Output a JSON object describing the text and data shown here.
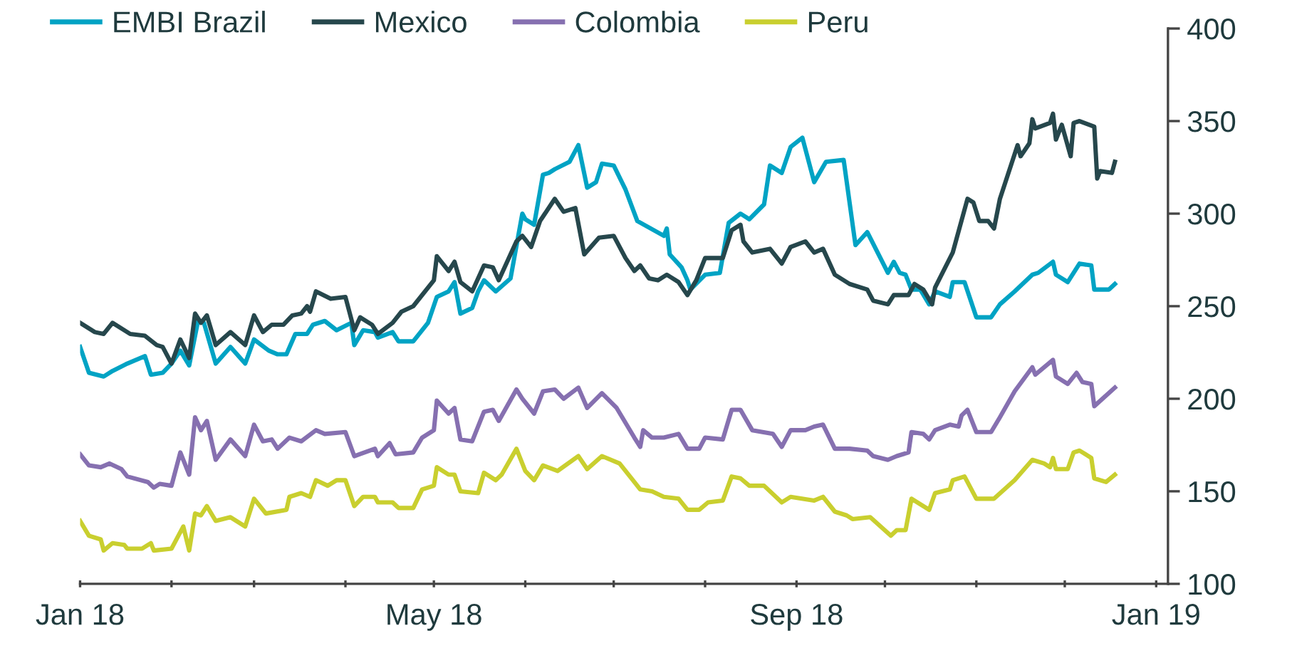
{
  "chart_data": {
    "type": "line",
    "xlim": [
      "2018-01-01",
      "2019-01-05"
    ],
    "xticks": [
      {
        "value": "2018-01-01",
        "label": "Jan 18"
      },
      {
        "value": "2018-02-01",
        "label": null
      },
      {
        "value": "2018-03-01",
        "label": null
      },
      {
        "value": "2018-04-01",
        "label": null
      },
      {
        "value": "2018-05-01",
        "label": "May 18"
      },
      {
        "value": "2018-06-01",
        "label": null
      },
      {
        "value": "2018-07-01",
        "label": null
      },
      {
        "value": "2018-08-01",
        "label": null
      },
      {
        "value": "2018-09-01",
        "label": "Sep 18"
      },
      {
        "value": "2018-10-01",
        "label": null
      },
      {
        "value": "2018-11-01",
        "label": null
      },
      {
        "value": "2018-12-01",
        "label": null
      },
      {
        "value": "2019-01-01",
        "label": "Jan 19"
      }
    ],
    "ylim": [
      100,
      400
    ],
    "yticks": [
      100,
      150,
      200,
      250,
      300,
      350,
      400
    ],
    "grid": false,
    "legend": "top left",
    "marker": "none",
    "line_style": "solid",
    "series": [
      {
        "name": "EMBI Brazil",
        "color": "#00a3c4",
        "x": [
          "2018-01-01",
          "2018-01-04",
          "2018-01-09",
          "2018-01-12",
          "2018-01-17",
          "2018-01-23",
          "2018-01-25",
          "2018-01-29",
          "2018-02-01",
          "2018-02-04",
          "2018-02-07",
          "2018-02-10",
          "2018-02-12",
          "2018-02-16",
          "2018-02-21",
          "2018-02-26",
          "2018-03-01",
          "2018-03-06",
          "2018-03-09",
          "2018-03-12",
          "2018-03-15",
          "2018-03-19",
          "2018-03-21",
          "2018-03-25",
          "2018-03-29",
          "2018-04-03",
          "2018-04-04",
          "2018-04-07",
          "2018-04-11",
          "2018-04-12",
          "2018-04-17",
          "2018-04-19",
          "2018-04-24",
          "2018-04-29",
          "2018-05-02",
          "2018-05-06",
          "2018-05-08",
          "2018-05-10",
          "2018-05-14",
          "2018-05-16",
          "2018-05-18",
          "2018-05-22",
          "2018-05-27",
          "2018-05-31",
          "2018-06-01",
          "2018-06-04",
          "2018-06-07",
          "2018-06-09",
          "2018-06-11",
          "2018-06-16",
          "2018-06-19",
          "2018-06-22",
          "2018-06-25",
          "2018-06-27",
          "2018-07-01",
          "2018-07-05",
          "2018-07-09",
          "2018-07-18",
          "2018-07-19",
          "2018-07-20",
          "2018-07-24",
          "2018-07-26",
          "2018-07-27",
          "2018-08-01",
          "2018-08-06",
          "2018-08-09",
          "2018-08-13",
          "2018-08-16",
          "2018-08-21",
          "2018-08-23",
          "2018-08-27",
          "2018-08-30",
          "2018-09-03",
          "2018-09-07",
          "2018-09-11",
          "2018-09-17",
          "2018-09-21",
          "2018-09-25",
          "2018-10-02",
          "2018-10-04",
          "2018-10-06",
          "2018-10-08",
          "2018-10-10",
          "2018-10-13",
          "2018-10-16",
          "2018-10-18",
          "2018-10-23",
          "2018-10-24",
          "2018-10-28",
          "2018-11-01",
          "2018-11-06",
          "2018-11-09",
          "2018-11-14",
          "2018-11-20",
          "2018-11-22",
          "2018-11-27",
          "2018-11-28",
          "2018-12-02",
          "2018-12-06",
          "2018-12-10",
          "2018-12-11",
          "2018-12-16",
          "2018-12-18"
        ],
        "values": [
          228,
          214,
          212,
          215,
          219,
          223,
          213,
          214,
          219,
          226,
          218,
          242,
          241,
          219,
          228,
          219,
          232,
          226,
          224,
          224,
          235,
          235,
          240,
          242,
          237,
          241,
          229,
          237,
          236,
          233,
          236,
          231,
          231,
          241,
          255,
          258,
          263,
          246,
          249,
          258,
          264,
          258,
          265,
          300,
          297,
          294,
          321,
          322,
          324,
          328,
          337,
          314,
          317,
          327,
          326,
          313,
          296,
          288,
          292,
          278,
          271,
          264,
          259,
          267,
          268,
          295,
          300,
          297,
          305,
          326,
          322,
          336,
          341,
          317,
          328,
          329,
          283,
          290,
          268,
          274,
          268,
          267,
          259,
          259,
          251,
          258,
          255,
          263,
          263,
          244,
          244,
          251,
          258,
          267,
          268,
          274,
          267,
          263,
          273,
          272,
          259,
          259,
          262
        ]
      },
      {
        "name": "Mexico",
        "color": "#26474c",
        "x": [
          "2018-01-01",
          "2018-01-06",
          "2018-01-09",
          "2018-01-12",
          "2018-01-18",
          "2018-01-23",
          "2018-01-27",
          "2018-01-29",
          "2018-02-01",
          "2018-02-04",
          "2018-02-07",
          "2018-02-09",
          "2018-02-11",
          "2018-02-13",
          "2018-02-16",
          "2018-02-21",
          "2018-02-26",
          "2018-03-01",
          "2018-03-04",
          "2018-03-07",
          "2018-03-11",
          "2018-03-14",
          "2018-03-17",
          "2018-03-19",
          "2018-03-20",
          "2018-03-22",
          "2018-03-27",
          "2018-04-01",
          "2018-04-04",
          "2018-04-06",
          "2018-04-10",
          "2018-04-12",
          "2018-04-17",
          "2018-04-20",
          "2018-04-24",
          "2018-05-01",
          "2018-05-02",
          "2018-05-06",
          "2018-05-08",
          "2018-05-10",
          "2018-05-14",
          "2018-05-18",
          "2018-05-21",
          "2018-05-23",
          "2018-05-29",
          "2018-05-31",
          "2018-06-03",
          "2018-06-06",
          "2018-06-11",
          "2018-06-14",
          "2018-06-18",
          "2018-06-21",
          "2018-06-26",
          "2018-07-01",
          "2018-07-05",
          "2018-07-08",
          "2018-07-10",
          "2018-07-13",
          "2018-07-16",
          "2018-07-19",
          "2018-07-23",
          "2018-07-26",
          "2018-07-29",
          "2018-08-01",
          "2018-08-07",
          "2018-08-10",
          "2018-08-13",
          "2018-08-14",
          "2018-08-17",
          "2018-08-23",
          "2018-08-27",
          "2018-08-30",
          "2018-09-04",
          "2018-09-07",
          "2018-09-10",
          "2018-09-14",
          "2018-09-19",
          "2018-09-25",
          "2018-09-27",
          "2018-10-02",
          "2018-10-04",
          "2018-10-09",
          "2018-10-11",
          "2018-10-14",
          "2018-10-17",
          "2018-10-18",
          "2018-10-24",
          "2018-10-29",
          "2018-10-31",
          "2018-11-02",
          "2018-11-05",
          "2018-11-07",
          "2018-11-09",
          "2018-11-15",
          "2018-11-16",
          "2018-11-19",
          "2018-11-20",
          "2018-11-21",
          "2018-11-26",
          "2018-11-27",
          "2018-11-28",
          "2018-11-30",
          "2018-12-03",
          "2018-12-04",
          "2018-12-06",
          "2018-12-11",
          "2018-12-12",
          "2018-12-13",
          "2018-12-17",
          "2018-12-18"
        ],
        "values": [
          241,
          236,
          235,
          241,
          235,
          234,
          229,
          228,
          219,
          232,
          222,
          246,
          241,
          245,
          229,
          236,
          229,
          245,
          236,
          240,
          240,
          245,
          246,
          250,
          247,
          258,
          254,
          255,
          237,
          244,
          240,
          235,
          241,
          247,
          250,
          264,
          277,
          269,
          274,
          263,
          258,
          272,
          271,
          264,
          285,
          288,
          282,
          296,
          308,
          301,
          303,
          278,
          287,
          288,
          276,
          269,
          272,
          265,
          264,
          267,
          263,
          256,
          264,
          276,
          276,
          291,
          294,
          285,
          279,
          281,
          273,
          282,
          285,
          279,
          281,
          267,
          262,
          259,
          253,
          251,
          256,
          256,
          262,
          259,
          251,
          260,
          279,
          308,
          306,
          296,
          296,
          292,
          308,
          337,
          331,
          338,
          351,
          346,
          349,
          354,
          340,
          348,
          331,
          349,
          350,
          347,
          319,
          323,
          322,
          328
        ]
      },
      {
        "name": "Colombia",
        "color": "#8670b0",
        "x": [
          "2018-01-01",
          "2018-01-04",
          "2018-01-08",
          "2018-01-11",
          "2018-01-15",
          "2018-01-17",
          "2018-01-24",
          "2018-01-26",
          "2018-01-28",
          "2018-02-01",
          "2018-02-04",
          "2018-02-07",
          "2018-02-09",
          "2018-02-11",
          "2018-02-13",
          "2018-02-16",
          "2018-02-21",
          "2018-02-26",
          "2018-03-01",
          "2018-03-04",
          "2018-03-07",
          "2018-03-09",
          "2018-03-13",
          "2018-03-17",
          "2018-03-22",
          "2018-03-25",
          "2018-04-01",
          "2018-04-04",
          "2018-04-11",
          "2018-04-12",
          "2018-04-16",
          "2018-04-18",
          "2018-04-24",
          "2018-04-27",
          "2018-05-01",
          "2018-05-02",
          "2018-05-06",
          "2018-05-08",
          "2018-05-10",
          "2018-05-14",
          "2018-05-18",
          "2018-05-21",
          "2018-05-23",
          "2018-05-29",
          "2018-05-31",
          "2018-06-04",
          "2018-06-07",
          "2018-06-11",
          "2018-06-14",
          "2018-06-19",
          "2018-06-22",
          "2018-06-27",
          "2018-07-02",
          "2018-07-08",
          "2018-07-10",
          "2018-07-11",
          "2018-07-14",
          "2018-07-18",
          "2018-07-23",
          "2018-07-26",
          "2018-07-30",
          "2018-08-01",
          "2018-08-07",
          "2018-08-10",
          "2018-08-13",
          "2018-08-17",
          "2018-08-24",
          "2018-08-27",
          "2018-08-30",
          "2018-09-04",
          "2018-09-07",
          "2018-09-10",
          "2018-09-14",
          "2018-09-19",
          "2018-09-25",
          "2018-09-27",
          "2018-10-02",
          "2018-10-05",
          "2018-10-09",
          "2018-10-10",
          "2018-10-14",
          "2018-10-16",
          "2018-10-18",
          "2018-10-23",
          "2018-10-26",
          "2018-10-27",
          "2018-10-29",
          "2018-11-01",
          "2018-11-06",
          "2018-11-09",
          "2018-11-14",
          "2018-11-20",
          "2018-11-21",
          "2018-11-27",
          "2018-11-28",
          "2018-12-02",
          "2018-12-05",
          "2018-12-07",
          "2018-12-10",
          "2018-12-11",
          "2018-12-18"
        ],
        "values": [
          170,
          164,
          163,
          165,
          162,
          158,
          155,
          152,
          154,
          153,
          171,
          159,
          190,
          183,
          188,
          167,
          178,
          169,
          186,
          177,
          178,
          173,
          179,
          177,
          183,
          181,
          182,
          169,
          173,
          169,
          176,
          170,
          171,
          179,
          183,
          199,
          192,
          195,
          178,
          177,
          193,
          194,
          188,
          205,
          200,
          192,
          204,
          205,
          200,
          206,
          195,
          203,
          195,
          179,
          174,
          183,
          179,
          179,
          181,
          173,
          173,
          179,
          178,
          194,
          194,
          183,
          181,
          174,
          183,
          183,
          185,
          186,
          173,
          173,
          172,
          169,
          167,
          169,
          171,
          182,
          181,
          178,
          183,
          186,
          185,
          191,
          194,
          182,
          182,
          190,
          204,
          217,
          213,
          221,
          212,
          208,
          214,
          209,
          208,
          196,
          206
        ]
      },
      {
        "name": "Peru",
        "color": "#c9cf2f",
        "x": [
          "2018-01-01",
          "2018-01-04",
          "2018-01-08",
          "2018-01-09",
          "2018-01-12",
          "2018-01-16",
          "2018-01-17",
          "2018-01-22",
          "2018-01-25",
          "2018-01-26",
          "2018-02-01",
          "2018-02-05",
          "2018-02-07",
          "2018-02-09",
          "2018-02-11",
          "2018-02-13",
          "2018-02-16",
          "2018-02-21",
          "2018-02-26",
          "2018-03-01",
          "2018-03-05",
          "2018-03-12",
          "2018-03-13",
          "2018-03-17",
          "2018-03-20",
          "2018-03-22",
          "2018-03-26",
          "2018-03-29",
          "2018-04-01",
          "2018-04-04",
          "2018-04-07",
          "2018-04-11",
          "2018-04-12",
          "2018-04-17",
          "2018-04-19",
          "2018-04-24",
          "2018-04-27",
          "2018-05-01",
          "2018-05-02",
          "2018-05-06",
          "2018-05-08",
          "2018-05-10",
          "2018-05-16",
          "2018-05-18",
          "2018-05-22",
          "2018-05-24",
          "2018-05-29",
          "2018-06-01",
          "2018-06-04",
          "2018-06-07",
          "2018-06-12",
          "2018-06-19",
          "2018-06-22",
          "2018-06-27",
          "2018-07-03",
          "2018-07-08",
          "2018-07-10",
          "2018-07-14",
          "2018-07-18",
          "2018-07-23",
          "2018-07-26",
          "2018-07-30",
          "2018-08-02",
          "2018-08-07",
          "2018-08-10",
          "2018-08-13",
          "2018-08-16",
          "2018-08-21",
          "2018-08-27",
          "2018-08-30",
          "2018-09-07",
          "2018-09-10",
          "2018-09-14",
          "2018-09-18",
          "2018-09-20",
          "2018-09-26",
          "2018-10-03",
          "2018-10-05",
          "2018-10-08",
          "2018-10-10",
          "2018-10-16",
          "2018-10-18",
          "2018-10-23",
          "2018-10-24",
          "2018-10-28",
          "2018-11-01",
          "2018-11-07",
          "2018-11-14",
          "2018-11-20",
          "2018-11-24",
          "2018-11-26",
          "2018-11-27",
          "2018-11-28",
          "2018-12-02",
          "2018-12-04",
          "2018-12-06",
          "2018-12-10",
          "2018-12-11",
          "2018-12-15",
          "2018-12-18"
        ],
        "values": [
          134,
          126,
          124,
          118,
          122,
          121,
          119,
          119,
          122,
          118,
          119,
          131,
          118,
          138,
          137,
          142,
          134,
          136,
          131,
          146,
          138,
          140,
          147,
          149,
          147,
          156,
          153,
          156,
          156,
          142,
          147,
          147,
          144,
          144,
          141,
          141,
          151,
          153,
          163,
          159,
          159,
          150,
          149,
          160,
          156,
          159,
          173,
          161,
          156,
          164,
          161,
          169,
          162,
          169,
          165,
          155,
          151,
          150,
          147,
          146,
          140,
          140,
          144,
          145,
          158,
          157,
          153,
          153,
          144,
          147,
          145,
          147,
          139,
          137,
          135,
          136,
          126,
          129,
          129,
          146,
          140,
          149,
          151,
          156,
          158,
          146,
          146,
          156,
          167,
          165,
          163,
          168,
          162,
          162,
          171,
          172,
          168,
          157,
          155,
          159
        ]
      }
    ]
  }
}
